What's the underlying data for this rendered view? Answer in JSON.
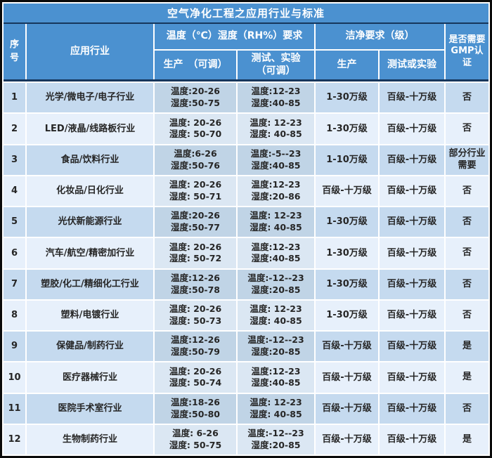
{
  "title": "空气净化工程之应用行业与标准",
  "header": {
    "serial": "序号",
    "industry": "应用行业",
    "temp_group": "温度（℃）湿度（RH%）要求",
    "temp_prod": "生产　（可调）",
    "temp_test_line1": "测试、实验",
    "temp_test_line2": "（可调）",
    "clean_group": "洁净要求（级）",
    "clean_prod": "生产",
    "clean_test": "测试或实验",
    "gmp_line1": "是否需要",
    "gmp_line2": "GMP认证"
  },
  "colors": {
    "frame_black": "#0a0a0a",
    "navy_line": "#16365c",
    "header_blue": "#4b91d0",
    "header_text": "#ffffff",
    "row_dark": "#c5daef",
    "row_dark_temp": "#c0d4e6",
    "row_light": "#e7f0fb",
    "row_light_temp": "#dbe7f3",
    "cell_text": "#262626"
  },
  "rows": [
    {
      "no": "1",
      "industry": "光学/微电子/电子行业",
      "prod_temp": "温度:20-26",
      "prod_hum": "湿度:50-75",
      "test_temp": "温度:12-23",
      "test_hum": "湿度:40-85",
      "clean_prod": "1-30万级",
      "clean_test": "百级-十万级",
      "gmp": "否"
    },
    {
      "no": "2",
      "industry": "LED/液晶/线路板行业",
      "prod_temp": "温度: 20-26",
      "prod_hum": "湿度: 50-70",
      "test_temp": "温度: 12-23",
      "test_hum": "湿度: 40-85",
      "clean_prod": "1-30万级",
      "clean_test": "百级-十万级",
      "gmp": "否"
    },
    {
      "no": "3",
      "industry": "食品/饮料行业",
      "prod_temp": "温度:6-26",
      "prod_hum": "湿度:50-76",
      "test_temp": "温度:-5--23",
      "test_hum": "湿度:40-85",
      "clean_prod": "1-10万级",
      "clean_test": "百级-十万级",
      "gmp": "部分行业需要"
    },
    {
      "no": "4",
      "industry": "化妆品/日化行业",
      "prod_temp": "温度: 20-26",
      "prod_hum": "湿度: 50-71",
      "test_temp": "温度:12-23",
      "test_hum": "湿度:20-86",
      "clean_prod": "百级-十万级",
      "clean_test": "百级-十万级",
      "gmp": "否"
    },
    {
      "no": "5",
      "industry": "光伏新能源行业",
      "prod_temp": "温度:20-26",
      "prod_hum": "湿度:50-77",
      "test_temp": "温度: 12-23",
      "test_hum": "湿度: 40-85",
      "clean_prod": "1-30万级",
      "clean_test": "百级-十万级",
      "gmp": "否"
    },
    {
      "no": "6",
      "industry": "汽车/航空/精密加行业",
      "prod_temp": "温度: 20-26",
      "prod_hum": "湿度: 50-72",
      "test_temp": "温度:12-23",
      "test_hum": "湿度:40-85",
      "clean_prod": "1-30万级",
      "clean_test": "百级-十万级",
      "gmp": "否"
    },
    {
      "no": "7",
      "industry": "塑胶/化工/精细化工行业",
      "prod_temp": "温度:12-26",
      "prod_hum": "湿度:50-78",
      "test_temp": "温度:-12--23",
      "test_hum": "湿度:20-85",
      "clean_prod": "1-30万级",
      "clean_test": "百级-十万级",
      "gmp": "否"
    },
    {
      "no": "8",
      "industry": "塑料/电镀行业",
      "prod_temp": "温度: 20-26",
      "prod_hum": "湿度: 50-73",
      "test_temp": "温度: 12-23",
      "test_hum": "湿度: 40-85",
      "clean_prod": "1-30万级",
      "clean_test": "百级-十万级",
      "gmp": "否"
    },
    {
      "no": "9",
      "industry": "保健品/制药行业",
      "prod_temp": "温度:12-26",
      "prod_hum": "湿度:50-79",
      "test_temp": "温度:-12--23",
      "test_hum": "湿度:20-85",
      "clean_prod": "百级-十万级",
      "clean_test": "百级-十万级",
      "gmp": "是"
    },
    {
      "no": "10",
      "industry": "医疗器械行业",
      "prod_temp": "温度: 20-26",
      "prod_hum": "湿度: 50-74",
      "test_temp": "温度:12-23",
      "test_hum": "湿度:40-85",
      "clean_prod": "百级-十万级",
      "clean_test": "百级-十万级",
      "gmp": "是"
    },
    {
      "no": "11",
      "industry": "医院手术室行业",
      "prod_temp": "温度:18-26",
      "prod_hum": "湿度:50-80",
      "test_temp": "温度: 12-23",
      "test_hum": "湿度: 40-85",
      "clean_prod": "百级-十万级",
      "clean_test": "百级-十万级",
      "gmp": "否"
    },
    {
      "no": "12",
      "industry": "生物制药行业",
      "prod_temp": "温度: 6-26",
      "prod_hum": "湿度: 50-75",
      "test_temp": "温度:-12--23",
      "test_hum": "湿度:20-85",
      "clean_prod": "百级-十万级",
      "clean_test": "百级-十万级",
      "gmp": "是"
    }
  ]
}
